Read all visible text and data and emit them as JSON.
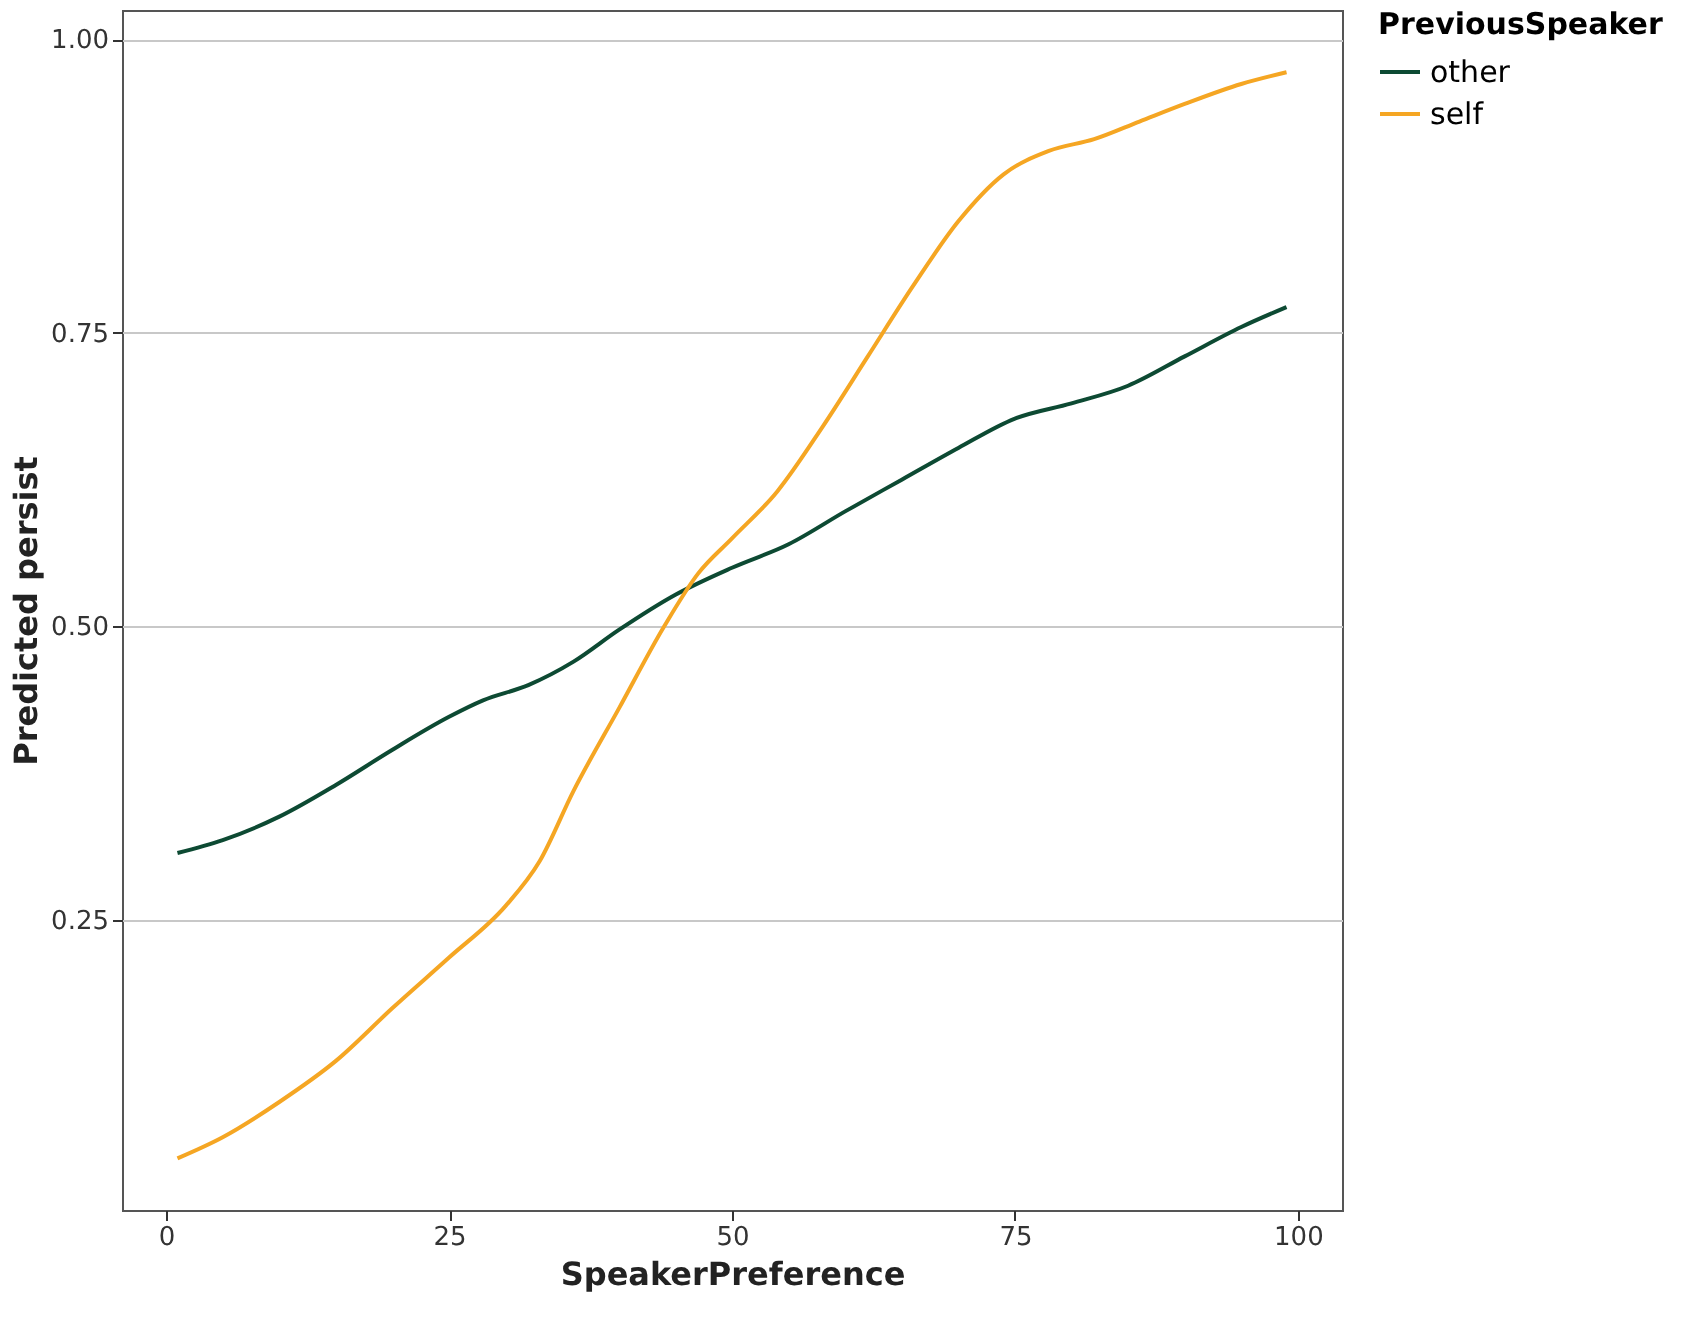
{
  "chart_data": {
    "type": "line",
    "xlabel": "SpeakerPreference",
    "ylabel": "Predicted persist",
    "legend_title": "PreviousSpeaker",
    "xlim": [
      -3.9,
      103.9
    ],
    "ylim": [
      0.003,
      1.025
    ],
    "xticks": [
      0,
      25,
      50,
      75,
      100
    ],
    "yticks": [
      {
        "value": 0.25,
        "label": "0.25"
      },
      {
        "value": 0.5,
        "label": "0.50"
      },
      {
        "value": 0.75,
        "label": "0.75"
      },
      {
        "value": 1.0,
        "label": "1.00"
      }
    ],
    "grid": "y",
    "legend": "top right",
    "line_style": "solid",
    "marker": "none",
    "series": [
      {
        "name": "other",
        "color": "#0d4a33",
        "x": [
          1,
          5,
          10,
          15,
          20,
          25,
          28,
          32,
          36,
          40,
          45,
          50,
          55,
          60,
          65,
          70,
          75,
          80,
          85,
          90,
          95,
          99
        ],
        "values": [
          0.307,
          0.318,
          0.338,
          0.365,
          0.395,
          0.423,
          0.437,
          0.45,
          0.47,
          0.497,
          0.527,
          0.55,
          0.57,
          0.598,
          0.625,
          0.652,
          0.677,
          0.69,
          0.705,
          0.73,
          0.755,
          0.772
        ]
      },
      {
        "name": "self",
        "color": "#f5a623",
        "x": [
          1,
          5,
          10,
          15,
          20,
          25,
          30,
          33,
          36,
          40,
          44,
          47,
          50,
          54,
          58,
          62,
          66,
          70,
          74,
          78,
          82,
          86,
          90,
          95,
          99
        ],
        "values": [
          0.047,
          0.065,
          0.095,
          0.13,
          0.175,
          0.218,
          0.262,
          0.3,
          0.36,
          0.43,
          0.5,
          0.545,
          0.575,
          0.615,
          0.67,
          0.73,
          0.79,
          0.845,
          0.885,
          0.905,
          0.915,
          0.93,
          0.945,
          0.962,
          0.972
        ]
      }
    ]
  }
}
